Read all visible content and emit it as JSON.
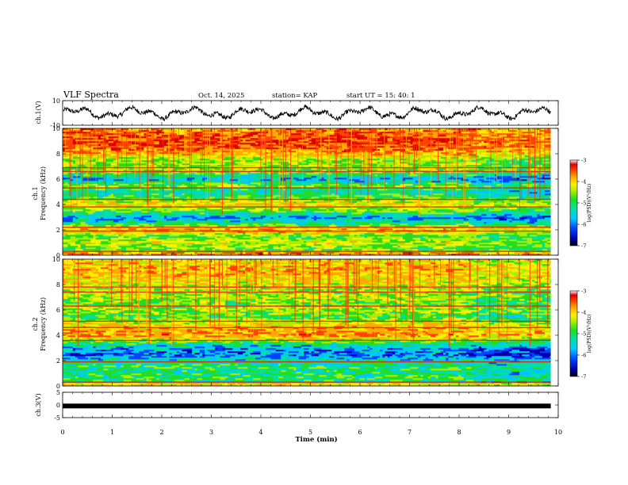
{
  "header": {
    "title": "VLF Spectra",
    "date": "Oct. 14, 2025",
    "station": "station= KAP",
    "start": "start UT =  15: 40: 1"
  },
  "colors": {
    "waveform": "#000000",
    "scale": [
      "#000000",
      "#0000aa",
      "#0044ff",
      "#00c8ff",
      "#00e0a0",
      "#22dd22",
      "#aaee00",
      "#ffee00",
      "#ffaa00",
      "#ff4400",
      "#dd0000",
      "#ffffff"
    ]
  },
  "chart_data": [
    {
      "type": "line",
      "name": "ch1-waveform",
      "ylabel": "ch.1(V)",
      "ylim": [
        -10,
        10
      ],
      "yticks": [
        "10",
        "-10"
      ],
      "xlim": [
        0,
        10
      ],
      "x_extent_min": 9.85,
      "amplitude_approx": 4
    },
    {
      "type": "heatmap",
      "name": "ch1-spectrogram",
      "ylabel_channel": "ch.1",
      "ylabel": "Frequency (kHz)",
      "ylim": [
        0,
        10
      ],
      "yticks": [
        "0",
        "2",
        "4",
        "6",
        "8",
        "10"
      ],
      "x_extent_min": 9.85,
      "colorbar": {
        "label": "log(PSD)(V²/Hz)",
        "ticks": [
          "-3",
          "-4",
          "-5",
          "-6",
          "-7"
        ],
        "range": [
          -7,
          -3
        ]
      },
      "band_levels_kHz": [
        {
          "f": 0.2,
          "v": 2.0
        },
        {
          "f": 0.5,
          "v": 1.5
        },
        {
          "f": 1.0,
          "v": 2.0
        },
        {
          "f": 1.5,
          "v": 1.5
        },
        {
          "f": 2.0,
          "v": 2.6
        },
        {
          "f": 2.5,
          "v": 1.2
        },
        {
          "f": 3.0,
          "v": 0.6
        },
        {
          "f": 3.5,
          "v": 1.6
        },
        {
          "f": 4.0,
          "v": 2.2
        },
        {
          "f": 4.5,
          "v": 1.5
        },
        {
          "f": 5.0,
          "v": 1.0
        },
        {
          "f": 5.5,
          "v": 1.7
        },
        {
          "f": 6.0,
          "v": 0.6
        },
        {
          "f": 6.5,
          "v": 1.6
        },
        {
          "f": 7.0,
          "v": 1.8
        },
        {
          "f": 7.5,
          "v": 1.7
        },
        {
          "f": 8.0,
          "v": 2.4
        },
        {
          "f": 8.5,
          "v": 2.8
        },
        {
          "f": 9.0,
          "v": 2.9
        },
        {
          "f": 9.5,
          "v": 2.8
        },
        {
          "f": 10.0,
          "v": 2.6
        }
      ],
      "lines_kHz": [
        0.3,
        1.9,
        2.2,
        3.8,
        4.4,
        5.3,
        6.6,
        6.9
      ]
    },
    {
      "type": "heatmap",
      "name": "ch2-spectrogram",
      "ylabel_channel": "ch.2",
      "ylabel": "Frequency (kHz)",
      "ylim": [
        0,
        10
      ],
      "yticks": [
        "0",
        "2",
        "4",
        "6",
        "8",
        "10"
      ],
      "x_extent_min": 9.85,
      "colorbar": {
        "label": "log(PSD)(V²/Hz)",
        "ticks": [
          "-3",
          "-4",
          "-5",
          "-6",
          "-7"
        ],
        "range": [
          -7,
          -3
        ]
      },
      "band_levels_kHz": [
        {
          "f": 0.2,
          "v": 0.8
        },
        {
          "f": 0.5,
          "v": 1.4
        },
        {
          "f": 1.0,
          "v": 1.2
        },
        {
          "f": 1.5,
          "v": 1.3
        },
        {
          "f": 2.0,
          "v": 1.0
        },
        {
          "f": 2.5,
          "v": 0.5
        },
        {
          "f": 3.0,
          "v": 0.6
        },
        {
          "f": 3.5,
          "v": 1.5
        },
        {
          "f": 4.0,
          "v": 2.6
        },
        {
          "f": 4.5,
          "v": 2.4
        },
        {
          "f": 5.0,
          "v": 2.0
        },
        {
          "f": 5.5,
          "v": 1.4
        },
        {
          "f": 6.0,
          "v": 1.8
        },
        {
          "f": 6.5,
          "v": 1.6
        },
        {
          "f": 7.0,
          "v": 1.8
        },
        {
          "f": 7.5,
          "v": 1.7
        },
        {
          "f": 8.0,
          "v": 2.0
        },
        {
          "f": 8.5,
          "v": 2.2
        },
        {
          "f": 9.0,
          "v": 2.4
        },
        {
          "f": 9.5,
          "v": 2.3
        },
        {
          "f": 10.0,
          "v": 2.1
        }
      ],
      "lines_kHz": [
        0.3,
        1.9,
        3.6,
        4.6,
        5.1,
        6.3,
        7.4,
        7.8
      ]
    },
    {
      "type": "line",
      "name": "ch3-waveform",
      "ylabel": "ch.3(V)",
      "ylim": [
        -5,
        5
      ],
      "yticks": [
        "5",
        "0",
        "-5"
      ],
      "xlim": [
        0,
        10
      ],
      "x_extent_min": 9.85,
      "level_V": -0.4
    }
  ],
  "xaxis": {
    "label": "Time (min)",
    "ticks": [
      "0",
      "1",
      "2",
      "3",
      "4",
      "5",
      "6",
      "7",
      "8",
      "9",
      "10"
    ]
  }
}
